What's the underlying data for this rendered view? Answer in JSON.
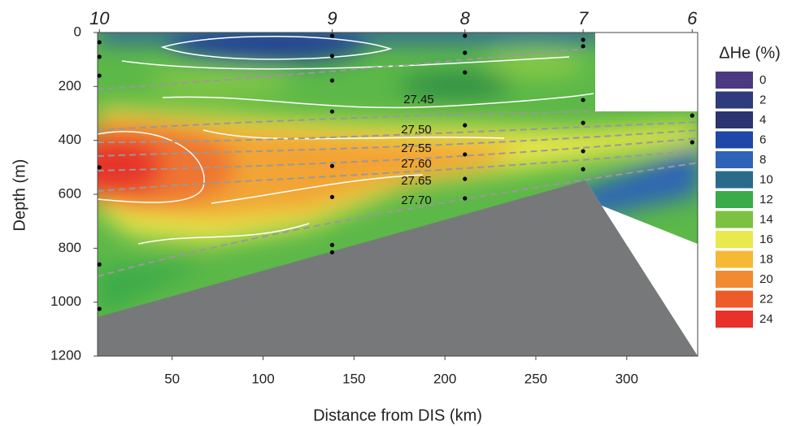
{
  "chart_data": {
    "type": "contour",
    "x_label": "Distance from DIS (km)",
    "y_label": "Depth (m)",
    "xlim": [
      9,
      339
    ],
    "ylim": [
      1200,
      0
    ],
    "xticks": [
      50,
      100,
      150,
      200,
      250,
      300
    ],
    "yticks": [
      0,
      200,
      400,
      600,
      800,
      1000,
      1200
    ],
    "stations": {
      "labels": [
        "10",
        "9",
        "8",
        "7",
        "6"
      ],
      "x": [
        10,
        138,
        211,
        276,
        336
      ]
    },
    "samples": {
      "x": [
        10,
        10,
        10,
        10,
        10,
        10,
        138,
        138,
        138,
        138,
        138,
        138,
        138,
        138,
        211,
        211,
        211,
        211,
        211,
        211,
        211,
        276,
        276,
        276,
        276,
        276,
        276,
        336,
        336
      ],
      "y": [
        36,
        90,
        160,
        500,
        860,
        1025,
        12,
        87,
        178,
        293,
        495,
        610,
        788,
        815,
        12,
        75,
        148,
        344,
        452,
        543,
        615,
        27,
        51,
        250,
        335,
        440,
        507,
        308,
        407
      ]
    },
    "isopycnal_labels": [
      "27.45",
      "27.50",
      "27.55",
      "27.60",
      "27.65",
      "27.70"
    ],
    "colorbar": {
      "title": "ΔHe (%)",
      "levels": [
        0,
        2,
        4,
        6,
        8,
        10,
        12,
        14,
        16,
        18,
        20,
        22,
        24
      ],
      "colors": [
        "#4b3a82",
        "#2e3b7c",
        "#2b3470",
        "#1f47a8",
        "#2f63b8",
        "#2a6b8c",
        "#3aab49",
        "#7cc142",
        "#e8e94c",
        "#f5b936",
        "#f08b31",
        "#ee5b2b",
        "#e8312a"
      ]
    }
  }
}
